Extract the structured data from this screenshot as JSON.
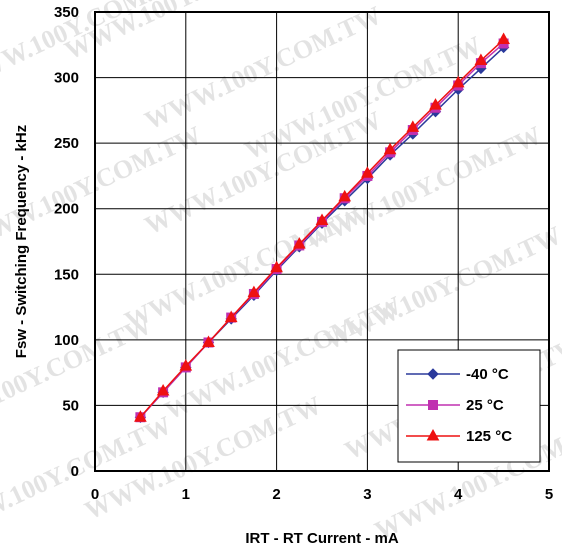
{
  "watermark": "WWW.100Y.COM.TW",
  "chart_data": {
    "type": "line",
    "title": "",
    "xlabel": "IRT - RT Current - mA",
    "ylabel": "Fsw - Switching Frequency - kHz",
    "xlim": [
      0,
      5
    ],
    "ylim": [
      0,
      350
    ],
    "xticks": [
      0,
      1,
      2,
      3,
      4,
      5
    ],
    "yticks": [
      0,
      50,
      100,
      150,
      200,
      250,
      300,
      350
    ],
    "grid": true,
    "legend_position": "bottom-right",
    "x": [
      0.5,
      0.75,
      1.0,
      1.25,
      1.5,
      1.75,
      2.0,
      2.25,
      2.5,
      2.75,
      3.0,
      3.25,
      3.5,
      3.75,
      4.0,
      4.25,
      4.5
    ],
    "series": [
      {
        "name": "-40 °C",
        "color": "#2b3a9c",
        "marker": "diamond",
        "values": [
          41,
          60,
          79,
          98,
          116,
          134,
          153,
          171,
          189,
          206,
          223,
          241,
          257,
          274,
          291,
          307,
          323
        ]
      },
      {
        "name": "25 °C",
        "color": "#c030b0",
        "marker": "square",
        "values": [
          41,
          60,
          79,
          98,
          117,
          135,
          154,
          172,
          190,
          208,
          225,
          243,
          260,
          277,
          294,
          311,
          326
        ]
      },
      {
        "name": "125 °C",
        "color": "#ee1111",
        "marker": "triangle",
        "values": [
          41,
          61,
          80,
          98,
          117,
          136,
          155,
          173,
          191,
          209,
          227,
          245,
          262,
          279,
          296,
          313,
          329
        ]
      }
    ]
  }
}
